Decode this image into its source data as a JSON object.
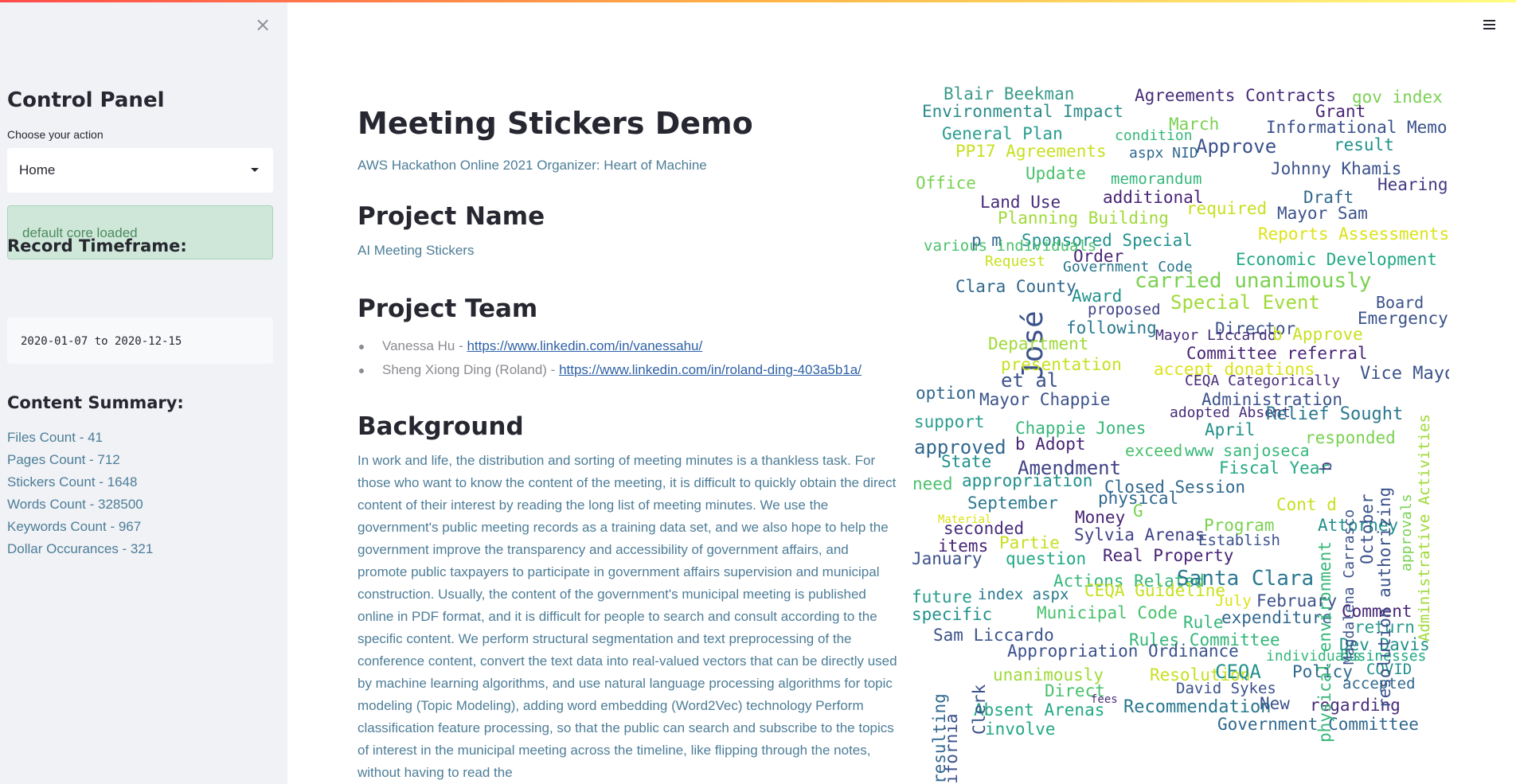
{
  "sidebar": {
    "close_label": "×",
    "title": "Control Panel",
    "action_label": "Choose your action",
    "action_value": "Home",
    "alert_text": "default core loaded",
    "timeframe_heading": "Record Timeframe:",
    "timeframe_value": "2020-01-07 to 2020-12-15",
    "summary_heading": "Content Summary:",
    "summary": [
      "Files Count - 41",
      "Pages Count - 712",
      "Stickers Count - 1648",
      "Words Count - 328500",
      "Keywords Count - 967",
      "Dollar Occurances - 321"
    ]
  },
  "main": {
    "title": "Meeting Stickers Demo",
    "subtitle": "AWS Hackathon Online 2021 Organizer: Heart of Machine",
    "project_name_heading": "Project Name",
    "project_name": "AI Meeting Stickers",
    "team_heading": "Project Team",
    "team": [
      {
        "name": "Vanessa Hu - ",
        "link": "https://www.linkedin.com/in/vanessahu/"
      },
      {
        "name": "Sheng Xiong Ding (Roland) - ",
        "link": "https://www.linkedin.com/in/roland-ding-403a5b1a/"
      }
    ],
    "background_heading": "Background",
    "background_text": "In work and life, the distribution and sorting of meeting minutes is a thankless task. For those who want to know the content of the meeting, it is difficult to quickly obtain the direct content of their interest by reading the long list of meeting minutes. We use the government's public meeting records as a training data set, and we also hope to help the government improve the transparency and accessibility of government affairs, and promote public taxpayers to participate in government affairs supervision and municipal construction. Usually, the content of the government's municipal meeting is published online in PDF format, and it is difficult for people to search and consult according to the specific content. We perform structural segmentation and text preprocessing of the conference content, convert the text data into real-valued vectors that can be directly used by machine learning algorithms, and use natural language processing algorithms for topic modeling (Topic Modeling), adding word embedding (Word2Vec) technology Perform classification feature processing, so that the public can search and subscribe to the topics of interest in the municipal meeting across the timeline, like flipping through the notes, without having to read the"
  },
  "wordcloud": [
    {
      "t": "Blair Beekman",
      "c": "#3b9a8a"
    },
    {
      "t": "Agreements Contracts",
      "c": "#472c7a"
    },
    {
      "t": "gov index",
      "c": "#7ad151"
    },
    {
      "t": "Environmental Impact",
      "c": "#2c8c8a"
    },
    {
      "t": "Grant",
      "c": "#482475"
    },
    {
      "t": "March",
      "c": "#7ad151"
    },
    {
      "t": "Informational Memo",
      "c": "#3b528b"
    },
    {
      "t": "General Plan",
      "c": "#2a9d8f"
    },
    {
      "t": "condition",
      "c": "#35b779"
    },
    {
      "t": "Approve",
      "c": "#3b528b"
    },
    {
      "t": "result",
      "c": "#21918c"
    },
    {
      "t": "PP17 Agreements",
      "c": "#c8e020"
    },
    {
      "t": "aspx NID",
      "c": "#31688e"
    },
    {
      "t": "Johnny Khamis",
      "c": "#3b528b"
    },
    {
      "t": "Update",
      "c": "#4ac16d"
    },
    {
      "t": "Office",
      "c": "#7ad151"
    },
    {
      "t": "memorandum",
      "c": "#35b779"
    },
    {
      "t": "Hearing",
      "c": "#443983"
    },
    {
      "t": "additional",
      "c": "#482475"
    },
    {
      "t": "Draft",
      "c": "#31688e"
    },
    {
      "t": "Land Use",
      "c": "#472c7a"
    },
    {
      "t": "required",
      "c": "#c8e020"
    },
    {
      "t": "Mayor Sam",
      "c": "#3b528b"
    },
    {
      "t": "Planning Building",
      "c": "#a0da39"
    },
    {
      "t": "Sponsored Special",
      "c": "#21918c"
    },
    {
      "t": "Reports Assessments",
      "c": "#dce319"
    },
    {
      "t": "p m",
      "c": "#31688e"
    },
    {
      "t": "Order",
      "c": "#482475"
    },
    {
      "t": "Economic Development",
      "c": "#22a884"
    },
    {
      "t": "Government Code",
      "c": "#2a788e"
    },
    {
      "t": "José",
      "c": "#3b528b"
    },
    {
      "t": "carried unanimously",
      "c": "#7ad151"
    },
    {
      "t": "Award",
      "c": "#21918c"
    },
    {
      "t": "Board",
      "c": "#3b528b"
    },
    {
      "t": "proposed",
      "c": "#414487"
    },
    {
      "t": "Special Event",
      "c": "#a0da39"
    },
    {
      "t": "Emergency",
      "c": "#3b528b"
    },
    {
      "t": "following",
      "c": "#2a788e"
    },
    {
      "t": "Director",
      "c": "#3b528b"
    },
    {
      "t": "Mayor Liccardo",
      "c": "#472c7a"
    },
    {
      "t": "b Approve",
      "c": "#c8e020"
    },
    {
      "t": "Department",
      "c": "#a0da39"
    },
    {
      "t": "Committee referral",
      "c": "#482475"
    },
    {
      "t": "presentation",
      "c": "#c8e020"
    },
    {
      "t": "accept donations",
      "c": "#dce319"
    },
    {
      "t": "Vice Mayor",
      "c": "#3b528b"
    },
    {
      "t": "et al",
      "c": "#3b528b"
    },
    {
      "t": "CEQA Categorically",
      "c": "#472c7a"
    },
    {
      "t": "option",
      "c": "#31688e"
    },
    {
      "t": "Mayor Chappie",
      "c": "#3b528b"
    },
    {
      "t": "Administration",
      "c": "#3b528b"
    },
    {
      "t": "adopted Absent",
      "c": "#472c7a"
    },
    {
      "t": "Relief Sought",
      "c": "#2a788e"
    },
    {
      "t": "support",
      "c": "#2a9d8f"
    },
    {
      "t": "Chappie Jones",
      "c": "#35b779"
    },
    {
      "t": "April",
      "c": "#21918c"
    },
    {
      "t": "responded",
      "c": "#7ad151"
    },
    {
      "t": "approved",
      "c": "#31688e"
    },
    {
      "t": "b Adopt",
      "c": "#482475"
    },
    {
      "t": "exceed",
      "c": "#4ac16d"
    },
    {
      "t": "www sanjoseca",
      "c": "#35b779"
    },
    {
      "t": "State",
      "c": "#21918c"
    },
    {
      "t": "Amendment",
      "c": "#414487"
    },
    {
      "t": "Fiscal Year",
      "c": "#22a884"
    },
    {
      "t": "need",
      "c": "#4ac16d"
    },
    {
      "t": "appropriation",
      "c": "#21918c"
    },
    {
      "t": "Closed Session",
      "c": "#31688e"
    },
    {
      "t": "September",
      "c": "#2a788e"
    },
    {
      "t": "physical",
      "c": "#31688e"
    },
    {
      "t": "Cont d",
      "c": "#c8e020"
    },
    {
      "t": "Material",
      "c": "#dce319"
    },
    {
      "t": "Money",
      "c": "#482475"
    },
    {
      "t": "G",
      "c": "#7ad151"
    },
    {
      "t": "seconded",
      "c": "#472c7a"
    },
    {
      "t": "Program",
      "c": "#7ad151"
    },
    {
      "t": "Attorney",
      "c": "#21918c"
    },
    {
      "t": "items",
      "c": "#482475"
    },
    {
      "t": "Partie",
      "c": "#c8e020"
    },
    {
      "t": "Sylvia Arenas",
      "c": "#414487"
    },
    {
      "t": "Establish",
      "c": "#3b528b"
    },
    {
      "t": "January",
      "c": "#3b528b"
    },
    {
      "t": "question",
      "c": "#22a884"
    },
    {
      "t": "Real Property",
      "c": "#482475"
    },
    {
      "t": "Actions Related",
      "c": "#35b779"
    },
    {
      "t": "Santa Clara",
      "c": "#2a788e"
    },
    {
      "t": "future",
      "c": "#2a9d8f"
    },
    {
      "t": "index aspx",
      "c": "#2a788e"
    },
    {
      "t": "CEQA Guideline",
      "c": "#c8e020"
    },
    {
      "t": "July",
      "c": "#dce319"
    },
    {
      "t": "February",
      "c": "#3b528b"
    },
    {
      "t": "specific",
      "c": "#21918c"
    },
    {
      "t": "Municipal Code",
      "c": "#4ac16d"
    },
    {
      "t": "Rule",
      "c": "#35b779"
    },
    {
      "t": "expenditure",
      "c": "#31688e"
    },
    {
      "t": "Comment",
      "c": "#482475"
    },
    {
      "t": "return",
      "c": "#2a9d8f"
    },
    {
      "t": "Sam Liccardo",
      "c": "#3b528b"
    },
    {
      "t": "Rules Committee",
      "c": "#35b779"
    },
    {
      "t": "Dev Davis",
      "c": "#21918c"
    },
    {
      "t": "Appropriation Ordinance",
      "c": "#3b528b"
    },
    {
      "t": "individuals",
      "c": "#35b779"
    },
    {
      "t": "businesses",
      "c": "#22a884"
    },
    {
      "t": "unanimously",
      "c": "#a0da39"
    },
    {
      "t": "Resolution",
      "c": "#c8e020"
    },
    {
      "t": "CEQA",
      "c": "#21918c"
    },
    {
      "t": "Policy",
      "c": "#31688e"
    },
    {
      "t": "COVID",
      "c": "#21918c"
    },
    {
      "t": "accepted",
      "c": "#31688e"
    },
    {
      "t": "Direct",
      "c": "#4ac16d"
    },
    {
      "t": "David Sykes",
      "c": "#3b528b"
    },
    {
      "t": "fees",
      "c": "#472c7a"
    },
    {
      "t": "Absent Arenas",
      "c": "#22a884"
    },
    {
      "t": "Recommendation",
      "c": "#2a788e"
    },
    {
      "t": "New",
      "c": "#3b528b"
    },
    {
      "t": "regarding",
      "c": "#472c7a"
    },
    {
      "t": "Government Committee",
      "c": "#31688e"
    },
    {
      "t": "involve",
      "c": "#22a884"
    },
    {
      "t": "various individuals",
      "c": "#4ac16d"
    },
    {
      "t": "Clara County",
      "c": "#31688e"
    },
    {
      "t": "Request",
      "c": "#c8e020"
    },
    {
      "t": "resulting",
      "c": "#31688e"
    },
    {
      "t": "ifornia",
      "c": "#3b528b"
    },
    {
      "t": "Clerk",
      "c": "#3b528b"
    },
    {
      "t": "b",
      "c": "#414487"
    },
    {
      "t": "physical environment",
      "c": "#35b779"
    },
    {
      "t": "Magdalena Carrasco",
      "c": "#3b528b"
    },
    {
      "t": "October",
      "c": "#3b528b"
    },
    {
      "t": "resolution authorizing",
      "c": "#3b528b"
    },
    {
      "t": "approvals",
      "c": "#7ad151"
    },
    {
      "t": "Administrative Activities",
      "c": "#a0da39"
    }
  ]
}
